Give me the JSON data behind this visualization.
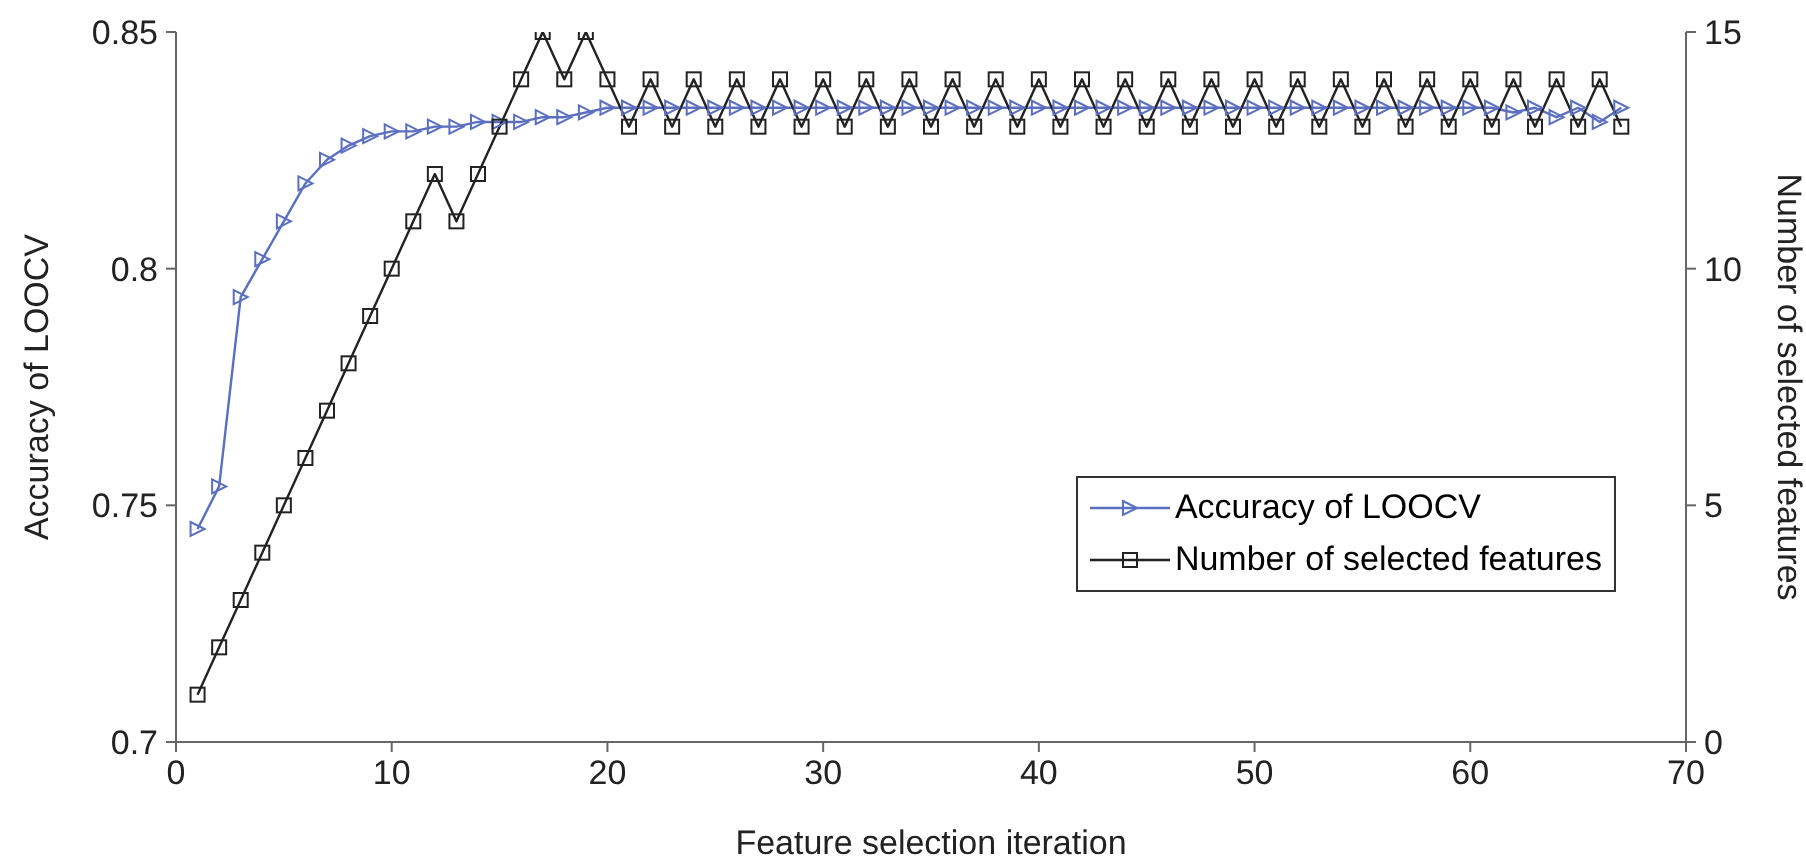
{
  "chart_data": {
    "type": "line",
    "xlabel": "Feature selection iteration",
    "ylabel": "Accuracy of LOOCV",
    "y2label": "Number of selected features",
    "x": [
      1,
      2,
      3,
      4,
      5,
      6,
      7,
      8,
      9,
      10,
      11,
      12,
      13,
      14,
      15,
      16,
      17,
      18,
      19,
      20,
      21,
      22,
      23,
      24,
      25,
      26,
      27,
      28,
      29,
      30,
      31,
      32,
      33,
      34,
      35,
      36,
      37,
      38,
      39,
      40,
      41,
      42,
      43,
      44,
      45,
      46,
      47,
      48,
      49,
      50,
      51,
      52,
      53,
      54,
      55,
      56,
      57,
      58,
      59,
      60,
      61,
      62,
      63,
      64,
      65,
      66,
      67
    ],
    "series": [
      {
        "name": "Accuracy of LOOCV",
        "color": "#5b6fc0",
        "marker": "triangle",
        "values": [
          0.745,
          0.754,
          0.794,
          0.802,
          0.81,
          0.818,
          0.823,
          0.826,
          0.828,
          0.829,
          0.829,
          0.83,
          0.83,
          0.831,
          0.831,
          0.831,
          0.832,
          0.832,
          0.833,
          0.834,
          0.834,
          0.834,
          0.834,
          0.834,
          0.834,
          0.834,
          0.834,
          0.834,
          0.834,
          0.834,
          0.834,
          0.834,
          0.834,
          0.834,
          0.834,
          0.834,
          0.834,
          0.834,
          0.834,
          0.834,
          0.834,
          0.834,
          0.834,
          0.834,
          0.834,
          0.834,
          0.834,
          0.834,
          0.834,
          0.834,
          0.834,
          0.834,
          0.834,
          0.834,
          0.834,
          0.834,
          0.834,
          0.834,
          0.834,
          0.834,
          0.834,
          0.833,
          0.834,
          0.832,
          0.834,
          0.831,
          0.834
        ]
      },
      {
        "name": "Number of selected features",
        "color": "#222222",
        "marker": "square",
        "axis": "y2",
        "values": [
          1,
          2,
          3,
          4,
          5,
          6,
          7,
          8,
          9,
          10,
          11,
          12,
          11,
          12,
          13,
          14,
          15,
          14,
          15,
          14,
          13,
          14,
          13,
          14,
          13,
          14,
          13,
          14,
          13,
          14,
          13,
          14,
          13,
          14,
          13,
          14,
          13,
          14,
          13,
          14,
          13,
          14,
          13,
          14,
          13,
          14,
          13,
          14,
          13,
          14,
          13,
          14,
          13,
          14,
          13,
          14,
          13,
          14,
          13,
          14,
          13,
          14,
          13,
          14,
          13,
          14,
          13
        ]
      }
    ],
    "xlim": [
      0,
      70
    ],
    "xticks": [
      0,
      10,
      20,
      30,
      40,
      50,
      60,
      70
    ],
    "ylim": [
      0.7,
      0.85
    ],
    "yticks": [
      0.7,
      0.75,
      0.8,
      0.85
    ],
    "y2lim": [
      0,
      15
    ],
    "y2ticks": [
      0,
      5,
      10,
      15
    ],
    "grid": false,
    "legend": "right"
  }
}
